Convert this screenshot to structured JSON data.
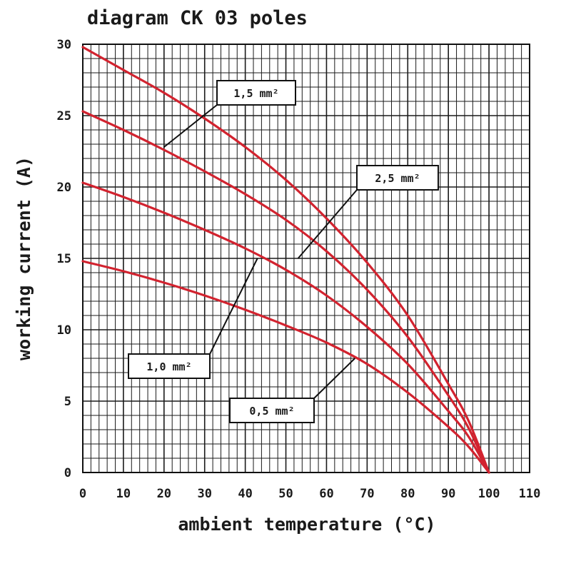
{
  "chart_data": {
    "type": "line",
    "title": "diagram CK 03 poles",
    "xlabel": "ambient temperature (°C)",
    "ylabel": "working current (A)",
    "xlim": [
      0,
      110
    ],
    "ylim": [
      0,
      30
    ],
    "x_ticks": [
      "0",
      "10",
      "20",
      "30",
      "40",
      "50",
      "60",
      "70",
      "80",
      "90",
      "100",
      "110"
    ],
    "y_ticks": [
      "0",
      "5",
      "10",
      "15",
      "20",
      "25",
      "30"
    ],
    "grid": true,
    "line_color": "#d2232f",
    "series": [
      {
        "name": "1,5 mm²",
        "x": [
          0,
          10,
          20,
          30,
          40,
          50,
          60,
          70,
          80,
          90,
          95,
          100
        ],
        "y": [
          29.8,
          28.2,
          26.6,
          24.8,
          22.8,
          20.5,
          17.8,
          14.7,
          11.0,
          6.2,
          3.6,
          0
        ]
      },
      {
        "name": "2,5 mm²",
        "x": [
          0,
          10,
          20,
          30,
          40,
          50,
          60,
          70,
          80,
          90,
          95,
          100
        ],
        "y": [
          25.3,
          24.0,
          22.6,
          21.1,
          19.5,
          17.7,
          15.5,
          12.8,
          9.5,
          5.4,
          3.1,
          0
        ]
      },
      {
        "name": "1,0 mm²",
        "x": [
          0,
          10,
          20,
          30,
          40,
          50,
          60,
          70,
          80,
          90,
          95,
          100
        ],
        "y": [
          20.3,
          19.3,
          18.2,
          17.0,
          15.7,
          14.2,
          12.4,
          10.2,
          7.6,
          4.3,
          2.5,
          0
        ]
      },
      {
        "name": "0,5 mm²",
        "x": [
          0,
          10,
          20,
          30,
          40,
          50,
          60,
          70,
          80,
          90,
          95,
          100
        ],
        "y": [
          14.8,
          14.1,
          13.3,
          12.4,
          11.4,
          10.3,
          9.1,
          7.6,
          5.6,
          3.2,
          1.8,
          0
        ]
      }
    ],
    "callouts": [
      {
        "series": 0,
        "text": "1,5 mm²",
        "anchor_x": 20,
        "anchor_y": 22.8
      },
      {
        "series": 1,
        "text": "2,5 mm²",
        "anchor_x": 53,
        "anchor_y": 15.0
      },
      {
        "series": 2,
        "text": "1,0 mm²",
        "anchor_x": 43,
        "anchor_y": 15.0
      },
      {
        "series": 3,
        "text": "0,5 mm²",
        "anchor_x": 67,
        "anchor_y": 8.0
      }
    ]
  }
}
